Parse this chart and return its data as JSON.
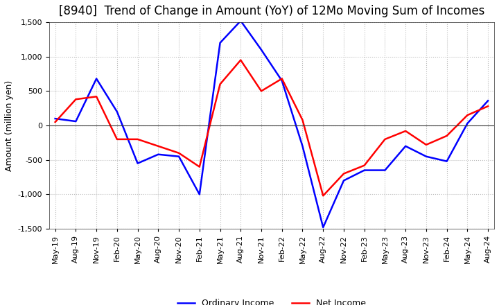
{
  "title": "[8940]  Trend of Change in Amount (YoY) of 12Mo Moving Sum of Incomes",
  "ylabel": "Amount (million yen)",
  "ylim": [
    -1500,
    1500
  ],
  "yticks": [
    -1500,
    -1000,
    -500,
    0,
    500,
    1000,
    1500
  ],
  "background_color": "#ffffff",
  "grid_color": "#bbbbbb",
  "x_labels": [
    "May-19",
    "Aug-19",
    "Nov-19",
    "Feb-20",
    "May-20",
    "Aug-20",
    "Nov-20",
    "Feb-21",
    "May-21",
    "Aug-21",
    "Nov-21",
    "Feb-22",
    "May-22",
    "Aug-22",
    "Nov-22",
    "Feb-23",
    "May-23",
    "Aug-23",
    "Nov-23",
    "Feb-24",
    "May-24",
    "Aug-24"
  ],
  "ordinary_income": [
    100,
    60,
    680,
    200,
    -550,
    -420,
    -450,
    -1000,
    1200,
    1520,
    1100,
    650,
    -300,
    -1480,
    -800,
    -650,
    -650,
    -300,
    -450,
    -520,
    30,
    360
  ],
  "net_income": [
    50,
    380,
    420,
    -200,
    -200,
    -300,
    -400,
    -600,
    600,
    950,
    500,
    680,
    80,
    -1020,
    -700,
    -580,
    -200,
    -80,
    -280,
    -150,
    150,
    280
  ],
  "ordinary_income_color": "#0000ff",
  "net_income_color": "#ff0000",
  "line_width": 1.8,
  "title_fontsize": 12,
  "label_fontsize": 9,
  "tick_fontsize": 8,
  "legend_fontsize": 9
}
